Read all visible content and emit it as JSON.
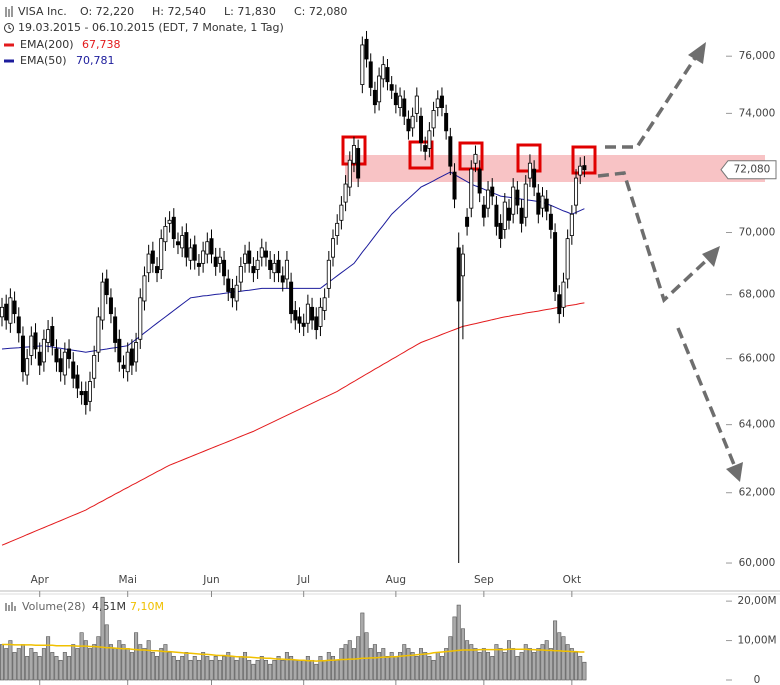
{
  "chart_data": {
    "type": "candlestick",
    "title": "VISA Inc.",
    "ohlc_labels": [
      "O: 72,220",
      "H: 72,540",
      "L: 71,830",
      "C: 72,080"
    ],
    "subtitle": "19.03.2015 - 06.10.2015 (EDT, 7 Monate, 1 Tag)",
    "categories": [
      null,
      null,
      null,
      null,
      null,
      null,
      null,
      null,
      null,
      "Apr",
      null,
      null,
      null,
      null,
      null,
      null,
      null,
      null,
      null,
      null,
      null,
      null,
      null,
      null,
      null,
      null,
      null,
      null,
      null,
      null,
      "Mai",
      null,
      null,
      null,
      null,
      null,
      null,
      null,
      null,
      null,
      null,
      null,
      null,
      null,
      null,
      null,
      null,
      null,
      null,
      null,
      "Jun",
      null,
      null,
      null,
      null,
      null,
      null,
      null,
      null,
      null,
      null,
      null,
      null,
      null,
      null,
      null,
      null,
      null,
      null,
      null,
      null,
      null,
      "Jul",
      null,
      null,
      null,
      null,
      null,
      null,
      null,
      null,
      null,
      null,
      null,
      null,
      null,
      null,
      null,
      null,
      null,
      null,
      null,
      null,
      null,
      "Aug",
      null,
      null,
      null,
      null,
      null,
      null,
      null,
      null,
      null,
      null,
      null,
      null,
      null,
      null,
      null,
      null,
      null,
      null,
      null,
      null,
      "Sep",
      null,
      null,
      null,
      null,
      null,
      null,
      null,
      null,
      null,
      null,
      null,
      null,
      null,
      null,
      null,
      null,
      null,
      null,
      null,
      null,
      "Okt",
      null,
      null,
      null
    ],
    "open": [
      67.3,
      67.7,
      67.1,
      67.8,
      67.3,
      66.7,
      65.5,
      66.1,
      66.8,
      66.2,
      65.9,
      66.5,
      67.0,
      66.3,
      66.0,
      65.5,
      66.3,
      65.9,
      65.5,
      65.0,
      65.0,
      64.7,
      65.4,
      66.2,
      67.2,
      68.5,
      67.9,
      67.3,
      66.6,
      65.8,
      65.6,
      66.3,
      65.9,
      66.6,
      67.8,
      68.7,
      69.4,
      68.9,
      68.8,
      69.7,
      70.3,
      70.5,
      69.7,
      69.5,
      70.0,
      69.1,
      69.6,
      69.0,
      69.0,
      69.3,
      69.8,
      69.2,
      69.0,
      69.1,
      68.5,
      68.2,
      67.8,
      68.4,
      69.0,
      69.4,
      68.9,
      68.8,
      69.2,
      69.4,
      69.1,
      68.7,
      69.1,
      68.6,
      68.5,
      68.4,
      67.5,
      67.3,
      67.1,
      67.1,
      67.6,
      67.3,
      67.0,
      67.5,
      68.2,
      69.2,
      69.9,
      70.4,
      71.0,
      71.5,
      72.3,
      72.8,
      75.0,
      76.6,
      75.8,
      74.8,
      74.4,
      75.2,
      75.6,
      75.0,
      74.7,
      74.2,
      74.5,
      73.8,
      73.5,
      74.0,
      73.9,
      72.9,
      72.8,
      73.5,
      74.2,
      74.6,
      74.0,
      73.2,
      72.0,
      69.5,
      68.6,
      70.5,
      70.8,
      72.3,
      72.1,
      70.9,
      70.8,
      71.5,
      70.9,
      70.3,
      70.1,
      70.8,
      70.6,
      71.4,
      70.8,
      70.5,
      71.8,
      72.1,
      71.3,
      70.8,
      71.1,
      70.6,
      70.0,
      68.0,
      67.6,
      68.5,
      69.9,
      70.9,
      71.9,
      72.22
    ],
    "high": [
      67.9,
      68.0,
      68.2,
      68.1,
      67.6,
      67.0,
      66.3,
      67.0,
      67.1,
      66.5,
      66.9,
      67.2,
      67.3,
      66.6,
      66.3,
      66.5,
      66.6,
      66.2,
      65.8,
      65.3,
      65.3,
      65.6,
      66.4,
      67.6,
      68.7,
      68.8,
      68.2,
      67.6,
      66.9,
      66.1,
      66.5,
      66.6,
      66.8,
      68.2,
      68.9,
      69.6,
      69.7,
      69.2,
      70.1,
      70.5,
      70.7,
      70.8,
      70.0,
      70.2,
      70.3,
      69.8,
      69.9,
      69.3,
      69.7,
      70.0,
      70.1,
      69.5,
      69.5,
      69.4,
      68.8,
      68.5,
      68.6,
      69.2,
      69.6,
      69.7,
      69.2,
      69.4,
      69.8,
      69.7,
      69.4,
      69.3,
      69.4,
      68.9,
      69.4,
      68.7,
      67.8,
      67.6,
      67.4,
      68.0,
      67.9,
      67.6,
      67.9,
      68.2,
      69.4,
      70.1,
      70.6,
      71.2,
      71.9,
      72.7,
      73.2,
      73.1,
      76.7,
      76.9,
      76.1,
      75.1,
      75.6,
      76.0,
      75.9,
      75.3,
      75.0,
      74.9,
      74.8,
      74.1,
      74.2,
      74.9,
      74.2,
      73.2,
      73.7,
      74.4,
      74.8,
      74.9,
      74.3,
      73.5,
      72.3,
      70.0,
      69.6,
      70.8,
      72.4,
      72.9,
      72.4,
      71.2,
      71.7,
      71.8,
      71.2,
      70.6,
      71.3,
      71.1,
      71.8,
      71.7,
      71.1,
      71.9,
      72.6,
      72.4,
      71.6,
      71.5,
      71.4,
      70.9,
      70.3,
      68.3,
      68.7,
      70.1,
      70.9,
      72.1,
      72.5,
      72.54
    ],
    "low": [
      67.0,
      66.9,
      66.8,
      67.1,
      66.5,
      65.3,
      65.2,
      65.8,
      66.0,
      65.5,
      65.6,
      66.2,
      66.1,
      65.6,
      65.3,
      65.2,
      65.7,
      65.1,
      64.8,
      64.6,
      64.3,
      64.4,
      65.1,
      65.9,
      66.9,
      67.7,
      67.1,
      66.2,
      65.6,
      65.4,
      65.3,
      65.5,
      65.6,
      66.3,
      67.5,
      68.4,
      68.7,
      68.4,
      68.5,
      69.4,
      70.0,
      69.5,
      69.3,
      69.2,
      68.9,
      68.8,
      68.8,
      68.6,
      68.7,
      69.0,
      69.0,
      68.6,
      68.7,
      68.3,
      67.8,
      67.6,
      67.5,
      68.1,
      68.7,
      68.7,
      68.4,
      68.5,
      68.9,
      68.9,
      68.5,
      68.4,
      68.4,
      68.1,
      68.2,
      67.1,
      66.9,
      66.8,
      66.7,
      66.8,
      66.9,
      66.6,
      66.7,
      67.2,
      67.9,
      68.9,
      69.6,
      70.1,
      70.7,
      71.2,
      72.0,
      71.5,
      74.7,
      75.6,
      74.6,
      74.0,
      74.1,
      74.9,
      74.8,
      74.5,
      74.0,
      73.9,
      73.6,
      73.1,
      73.2,
      73.7,
      72.7,
      72.4,
      72.5,
      73.2,
      73.9,
      73.9,
      73.1,
      71.9,
      70.8,
      60.0,
      66.6,
      69.9,
      70.5,
      72.0,
      71.0,
      70.2,
      70.5,
      70.9,
      69.9,
      69.5,
      69.8,
      70.1,
      70.3,
      70.6,
      70.0,
      70.2,
      71.5,
      71.2,
      70.3,
      70.5,
      70.4,
      69.8,
      67.8,
      67.1,
      67.3,
      68.2,
      69.6,
      70.6,
      71.6,
      71.83
    ],
    "close": [
      67.6,
      67.2,
      67.9,
      67.4,
      66.8,
      65.6,
      66.0,
      66.7,
      66.3,
      65.8,
      66.6,
      66.9,
      66.4,
      65.9,
      65.6,
      66.2,
      66.0,
      65.4,
      65.1,
      64.9,
      64.6,
      65.3,
      66.1,
      67.3,
      68.4,
      68.0,
      67.4,
      66.5,
      65.9,
      65.7,
      66.2,
      65.8,
      66.5,
      67.9,
      68.6,
      69.3,
      69.0,
      68.7,
      69.8,
      70.2,
      70.4,
      69.8,
      69.6,
      69.9,
      69.2,
      69.5,
      69.1,
      68.9,
      69.4,
      69.7,
      69.3,
      68.9,
      69.2,
      68.6,
      68.1,
      67.9,
      68.3,
      68.9,
      69.3,
      69.0,
      68.7,
      69.1,
      69.5,
      69.2,
      68.8,
      69.0,
      68.7,
      68.4,
      69.1,
      67.4,
      67.2,
      67.1,
      67.0,
      67.7,
      67.2,
      66.9,
      67.6,
      67.9,
      69.1,
      69.8,
      70.3,
      70.9,
      71.6,
      72.4,
      72.9,
      71.8,
      76.4,
      75.9,
      74.9,
      74.3,
      75.3,
      75.7,
      75.1,
      74.8,
      74.3,
      74.6,
      73.9,
      73.4,
      73.9,
      74.6,
      73.0,
      72.7,
      73.4,
      74.1,
      74.5,
      74.2,
      73.4,
      72.2,
      71.1,
      67.8,
      69.3,
      70.2,
      72.1,
      72.6,
      71.3,
      70.5,
      71.4,
      71.2,
      70.2,
      69.8,
      71.0,
      70.4,
      71.5,
      70.9,
      70.3,
      71.6,
      72.3,
      71.5,
      70.6,
      71.2,
      70.7,
      70.1,
      68.1,
      67.4,
      68.4,
      69.8,
      70.6,
      71.8,
      72.2,
      72.08
    ],
    "up_color": "#ffffff",
    "down_color": "#000000",
    "last_label": "72,080",
    "series": [
      {
        "name": "EMA(200)",
        "color": "#e31a1c",
        "last_label": "67,738",
        "values": [
          60.5,
          60.55,
          60.6,
          60.65,
          60.7,
          60.75,
          60.8,
          60.85,
          60.9,
          60.95,
          61.0,
          61.05,
          61.1,
          61.15,
          61.2,
          61.25,
          61.3,
          61.35,
          61.4,
          61.45,
          61.5,
          61.57,
          61.63,
          61.7,
          61.76,
          61.83,
          61.89,
          61.96,
          62.02,
          62.09,
          62.15,
          62.22,
          62.28,
          62.35,
          62.41,
          62.48,
          62.54,
          62.61,
          62.67,
          62.74,
          62.8,
          62.85,
          62.9,
          62.95,
          63.0,
          63.05,
          63.1,
          63.15,
          63.2,
          63.25,
          63.3,
          63.35,
          63.4,
          63.45,
          63.5,
          63.55,
          63.6,
          63.65,
          63.7,
          63.75,
          63.8,
          63.86,
          63.92,
          63.98,
          64.04,
          64.1,
          64.16,
          64.22,
          64.28,
          64.34,
          64.4,
          64.46,
          64.52,
          64.58,
          64.64,
          64.7,
          64.76,
          64.82,
          64.88,
          64.94,
          65.0,
          65.08,
          65.15,
          65.23,
          65.3,
          65.38,
          65.45,
          65.53,
          65.6,
          65.68,
          65.75,
          65.83,
          65.9,
          65.98,
          66.05,
          66.13,
          66.2,
          66.28,
          66.35,
          66.43,
          66.5,
          66.55,
          66.6,
          66.65,
          66.7,
          66.75,
          66.8,
          66.85,
          66.9,
          66.95,
          67.0,
          67.03,
          67.06,
          67.09,
          67.12,
          67.15,
          67.18,
          67.21,
          67.24,
          67.27,
          67.3,
          67.32,
          67.35,
          67.37,
          67.39,
          67.42,
          67.44,
          67.46,
          67.48,
          67.51,
          67.53,
          67.55,
          67.58,
          67.6,
          67.62,
          67.65,
          67.67,
          67.69,
          67.72,
          67.738
        ]
      },
      {
        "name": "EMA(50)",
        "color": "#1c1c9c",
        "last_label": "70,781",
        "values": [
          66.3,
          66.31,
          66.32,
          66.33,
          66.34,
          66.35,
          66.36,
          66.37,
          66.38,
          66.39,
          66.4,
          66.38,
          66.36,
          66.34,
          66.32,
          66.3,
          66.28,
          66.26,
          66.24,
          66.22,
          66.2,
          66.22,
          66.24,
          66.26,
          66.28,
          66.3,
          66.32,
          66.34,
          66.36,
          66.38,
          66.4,
          66.5,
          66.6,
          66.7,
          66.8,
          66.9,
          67.0,
          67.1,
          67.2,
          67.3,
          67.4,
          67.5,
          67.6,
          67.7,
          67.8,
          67.9,
          67.92,
          67.94,
          67.96,
          67.97,
          67.99,
          68.01,
          68.02,
          68.04,
          68.06,
          68.08,
          68.09,
          68.11,
          68.13,
          68.14,
          68.16,
          68.18,
          68.2,
          68.2,
          68.2,
          68.2,
          68.2,
          68.2,
          68.2,
          68.2,
          68.2,
          68.2,
          68.2,
          68.2,
          68.2,
          68.2,
          68.2,
          68.3,
          68.4,
          68.5,
          68.6,
          68.7,
          68.8,
          68.9,
          69.0,
          69.18,
          69.36,
          69.53,
          69.71,
          69.89,
          70.07,
          70.24,
          70.42,
          70.6,
          70.73,
          70.86,
          70.99,
          71.11,
          71.24,
          71.37,
          71.5,
          71.57,
          71.64,
          71.71,
          71.79,
          71.86,
          71.93,
          72.0,
          71.92,
          71.84,
          71.76,
          71.68,
          71.6,
          71.54,
          71.49,
          71.43,
          71.37,
          71.31,
          71.26,
          71.2,
          71.18,
          71.16,
          71.14,
          71.12,
          71.1,
          71.08,
          71.06,
          71.04,
          71.02,
          71.0,
          70.94,
          70.89,
          70.83,
          70.77,
          70.71,
          70.66,
          70.6,
          70.66,
          70.72,
          70.781
        ]
      }
    ],
    "ylim": [
      59.25,
      77.8
    ],
    "yticks": [
      {
        "value": 60,
        "label": "60,000"
      },
      {
        "value": 62,
        "label": "62,000"
      },
      {
        "value": 64,
        "label": "64,000"
      },
      {
        "value": 66,
        "label": "66,000"
      },
      {
        "value": 68,
        "label": "68,000"
      },
      {
        "value": 70,
        "label": "70,000"
      },
      {
        "value": 72,
        "label": "72,000"
      },
      {
        "value": 74,
        "label": "74,000"
      },
      {
        "value": 76,
        "label": "76,000"
      }
    ],
    "log_scale": true,
    "grid": false,
    "volume": {
      "name": "Volume(28)",
      "color": "#aaaaaa",
      "last_label": "4,51M",
      "values": [
        9,
        8,
        10,
        7,
        8,
        9,
        6,
        8,
        7,
        6,
        8,
        11,
        7,
        6,
        5,
        7,
        6,
        9,
        8,
        12,
        10,
        8,
        9,
        11,
        21,
        14,
        9,
        8,
        10,
        9,
        8,
        7,
        12,
        9,
        8,
        10,
        7,
        6,
        8,
        9,
        7,
        6,
        5,
        6,
        7,
        5,
        6,
        5,
        7,
        6,
        5,
        6,
        5,
        6,
        7,
        6,
        5,
        6,
        7,
        5,
        4,
        5,
        6,
        5,
        4,
        5,
        6,
        5,
        7,
        6,
        5,
        5,
        5,
        6,
        5,
        4,
        6,
        5,
        7,
        6,
        5,
        8,
        9,
        10,
        8,
        11,
        17,
        12,
        8,
        9,
        7,
        8,
        6,
        7,
        6,
        7,
        9,
        8,
        7,
        6,
        8,
        7,
        6,
        5,
        7,
        6,
        8,
        11,
        16,
        19,
        13,
        10,
        9,
        8,
        7,
        8,
        7,
        6,
        9,
        8,
        7,
        10,
        8,
        6,
        7,
        9,
        8,
        7,
        8,
        9,
        10,
        8,
        15,
        12,
        11,
        9,
        8,
        7,
        6,
        4.51
      ],
      "average": {
        "color": "#f0c000",
        "last_label": "7,10M",
        "values": [
          9.0,
          9.0,
          9.0,
          8.9,
          8.9,
          8.9,
          8.9,
          8.9,
          8.8,
          8.8,
          8.8,
          8.8,
          8.8,
          8.7,
          8.7,
          8.7,
          8.7,
          8.7,
          8.6,
          8.6,
          8.6,
          8.5,
          8.5,
          8.4,
          8.3,
          8.2,
          8.2,
          8.1,
          8.0,
          7.9,
          7.9,
          7.8,
          7.7,
          7.6,
          7.6,
          7.5,
          7.4,
          7.4,
          7.3,
          7.2,
          7.2,
          7.1,
          7.0,
          6.9,
          6.8,
          6.8,
          6.7,
          6.6,
          6.5,
          6.5,
          6.4,
          6.3,
          6.2,
          6.2,
          6.1,
          6.0,
          5.9,
          5.9,
          5.8,
          5.8,
          5.7,
          5.6,
          5.6,
          5.5,
          5.5,
          5.4,
          5.3,
          5.3,
          5.2,
          5.2,
          5.1,
          5.0,
          5.0,
          4.9,
          4.9,
          4.8,
          4.9,
          4.9,
          5.0,
          5.0,
          5.1,
          5.2,
          5.2,
          5.3,
          5.3,
          5.4,
          5.5,
          5.5,
          5.6,
          5.6,
          5.7,
          5.8,
          5.8,
          5.9,
          5.9,
          6.0,
          6.1,
          6.2,
          6.3,
          6.4,
          6.5,
          6.6,
          6.7,
          6.9,
          7.0,
          7.1,
          7.2,
          7.3,
          7.4,
          7.5,
          7.6,
          7.6,
          7.6,
          7.6,
          7.7,
          7.7,
          7.7,
          7.7,
          7.7,
          7.7,
          7.7,
          7.8,
          7.8,
          7.8,
          7.8,
          7.8,
          7.7,
          7.7,
          7.6,
          7.6,
          7.5,
          7.5,
          7.4,
          7.4,
          7.3,
          7.3,
          7.2,
          7.2,
          7.1,
          7.1
        ]
      },
      "ylim": [
        0,
        21.3
      ],
      "yticks": [
        0,
        {
          "value": 10,
          "label": "10,00M"
        },
        {
          "value": 20,
          "label": "20,00M"
        }
      ]
    }
  }
}
